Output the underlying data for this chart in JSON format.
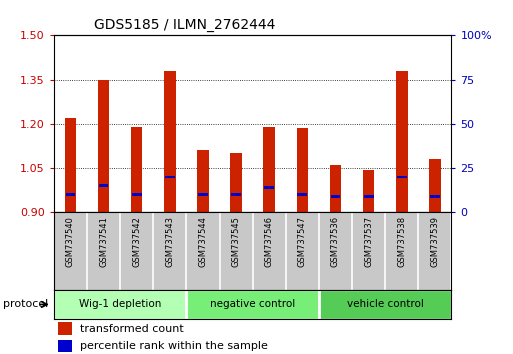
{
  "title": "GDS5185 / ILMN_2762444",
  "samples": [
    "GSM737540",
    "GSM737541",
    "GSM737542",
    "GSM737543",
    "GSM737544",
    "GSM737545",
    "GSM737546",
    "GSM737547",
    "GSM737536",
    "GSM737537",
    "GSM737538",
    "GSM737539"
  ],
  "transformed_count": [
    1.22,
    1.35,
    1.19,
    1.38,
    1.11,
    1.1,
    1.19,
    1.185,
    1.06,
    1.045,
    1.38,
    1.08
  ],
  "percentile_rank": [
    10,
    15,
    10,
    20,
    10,
    10,
    14,
    10,
    9,
    9,
    20,
    9
  ],
  "ylim_left": [
    0.9,
    1.5
  ],
  "ylim_right": [
    0,
    100
  ],
  "yticks_left": [
    0.9,
    1.05,
    1.2,
    1.35,
    1.5
  ],
  "yticks_right": [
    0,
    25,
    50,
    75,
    100
  ],
  "groups": [
    {
      "label": "Wig-1 depletion",
      "indices": [
        0,
        1,
        2,
        3
      ],
      "color": "#b3ffb3"
    },
    {
      "label": "negative control",
      "indices": [
        4,
        5,
        6,
        7
      ],
      "color": "#77ee77"
    },
    {
      "label": "vehicle control",
      "indices": [
        8,
        9,
        10,
        11
      ],
      "color": "#55cc55"
    }
  ],
  "bar_color_red": "#cc2200",
  "bar_color_blue": "#0000cc",
  "bar_width": 0.35,
  "base_value": 0.9,
  "bg_color": "#ffffff",
  "tick_color_left": "#cc0000",
  "tick_color_right": "#0000bb",
  "protocol_label": "protocol",
  "legend1": "transformed count",
  "legend2": "percentile rank within the sample",
  "sample_bg": "#c8c8c8"
}
